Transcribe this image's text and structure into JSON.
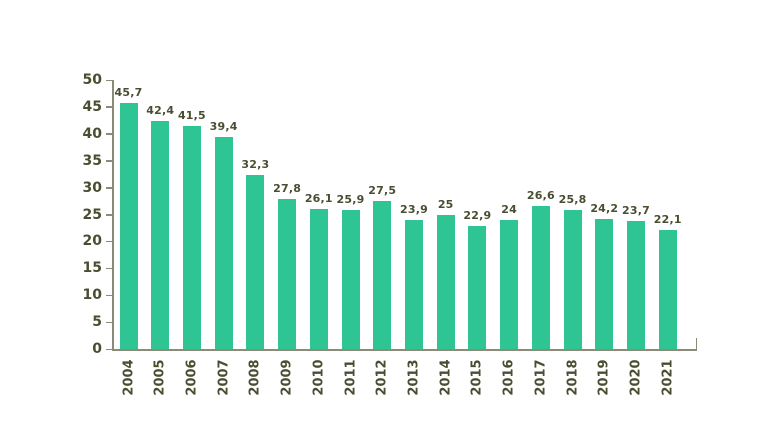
{
  "chart_data": {
    "type": "bar",
    "title": "",
    "categories": [
      "2004",
      "2005",
      "2006",
      "2007",
      "2008",
      "2009",
      "2010",
      "2011",
      "2012",
      "2013",
      "2014",
      "2015",
      "2016",
      "2017",
      "2018",
      "2019",
      "2020",
      "2021"
    ],
    "values": [
      45.7,
      42.4,
      41.5,
      39.4,
      32.3,
      27.8,
      26.1,
      25.9,
      27.5,
      23.9,
      25,
      22.9,
      24,
      26.6,
      25.8,
      24.2,
      23.7,
      22.1
    ],
    "value_labels": [
      "45,7",
      "42,4",
      "41,5",
      "39,4",
      "32,3",
      "27,8",
      "26,1",
      "25,9",
      "27,5",
      "23,9",
      "25",
      "22,9",
      "24",
      "26,6",
      "25,8",
      "24,2",
      "23,7",
      "22,1"
    ],
    "xlabel": "",
    "ylabel": "",
    "ylim": [
      0,
      50
    ],
    "yticks": [
      0,
      5,
      10,
      15,
      20,
      25,
      30,
      35,
      40,
      45,
      50
    ],
    "grid": false,
    "legend_position": "none",
    "decimal_separator": ",",
    "colors": {
      "bar": "#2FC493",
      "text": "#4A4E31",
      "axis": "#8A8C77",
      "background": "#FFFFFF"
    }
  }
}
